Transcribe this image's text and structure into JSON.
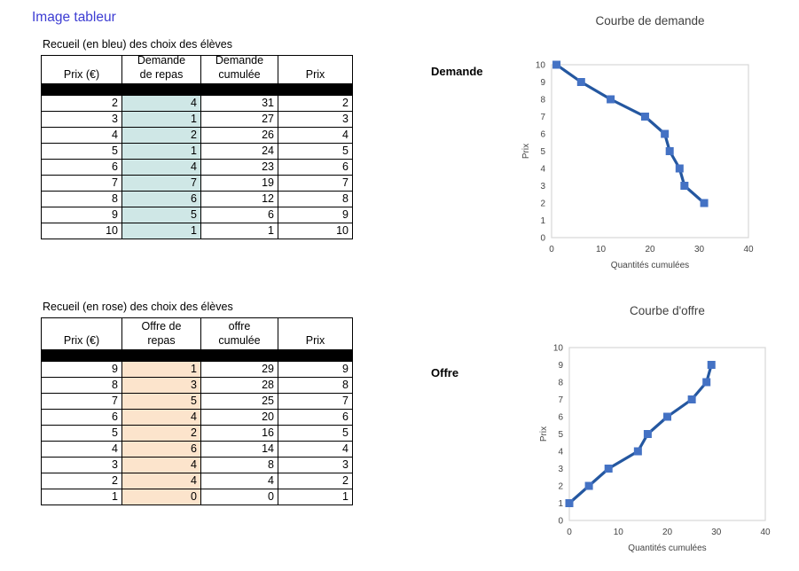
{
  "page_title": "Image tableur",
  "colors": {
    "title_blue": "#3d3dd3",
    "demand_highlight": "#cfe7e6",
    "supply_highlight": "#fce4cc",
    "line_blue": "#2457a0",
    "marker_blue": "#4472c4",
    "separator_row": "#000000"
  },
  "demand_section": {
    "caption": "Recueil (en bleu) des choix des élèves",
    "side_label": "Demande",
    "table": {
      "headers": [
        "Prix (€)",
        "Demande\nde repas",
        "Demande\ncumulée",
        "Prix"
      ],
      "highlight_col": 1,
      "highlight_color": "#cfe7e6",
      "rows": [
        [
          "2",
          "4",
          "31",
          "2"
        ],
        [
          "3",
          "1",
          "27",
          "3"
        ],
        [
          "4",
          "2",
          "26",
          "4"
        ],
        [
          "5",
          "1",
          "24",
          "5"
        ],
        [
          "6",
          "4",
          "23",
          "6"
        ],
        [
          "7",
          "7",
          "19",
          "7"
        ],
        [
          "8",
          "6",
          "12",
          "8"
        ],
        [
          "9",
          "5",
          "6",
          "9"
        ],
        [
          "10",
          "1",
          "1",
          "10"
        ]
      ]
    }
  },
  "supply_section": {
    "caption": "Recueil (en rose) des choix des élèves",
    "side_label": "Offre",
    "table": {
      "headers": [
        "Prix (€)",
        "Offre de\nrepas",
        "offre\ncumulée",
        "Prix"
      ],
      "highlight_col": 1,
      "highlight_color": "#fce4cc",
      "rows": [
        [
          "9",
          "1",
          "29",
          "9"
        ],
        [
          "8",
          "3",
          "28",
          "8"
        ],
        [
          "7",
          "5",
          "25",
          "7"
        ],
        [
          "6",
          "4",
          "20",
          "6"
        ],
        [
          "5",
          "2",
          "16",
          "5"
        ],
        [
          "4",
          "6",
          "14",
          "4"
        ],
        [
          "3",
          "4",
          "8",
          "3"
        ],
        [
          "2",
          "4",
          "4",
          "2"
        ],
        [
          "1",
          "0",
          "0",
          "1"
        ]
      ]
    }
  },
  "chart_data": [
    {
      "type": "line",
      "title": "Courbe de demande",
      "xlabel": "Quantités cumulées",
      "ylabel": "Prix",
      "series": [
        {
          "name": "Demande",
          "x": [
            1,
            6,
            12,
            19,
            23,
            24,
            26,
            27,
            31
          ],
          "y": [
            10,
            9,
            8,
            7,
            6,
            5,
            4,
            3,
            2
          ]
        }
      ],
      "xlim": [
        0,
        40
      ],
      "ylim": [
        0,
        10
      ],
      "xticks": [
        0,
        10,
        20,
        30,
        40
      ],
      "yticks": [
        0,
        1,
        2,
        3,
        4,
        5,
        6,
        7,
        8,
        9,
        10
      ],
      "grid": false,
      "legend": "none",
      "marker": "square",
      "line_color": "#2457a0",
      "marker_color": "#4472c4"
    },
    {
      "type": "line",
      "title": "Courbe d'offre",
      "xlabel": "Quantités cumulées",
      "ylabel": "Prix",
      "series": [
        {
          "name": "Offre",
          "x": [
            0,
            4,
            8,
            14,
            16,
            20,
            25,
            28,
            29
          ],
          "y": [
            1,
            2,
            3,
            4,
            5,
            6,
            7,
            8,
            9
          ]
        }
      ],
      "xlim": [
        0,
        40
      ],
      "ylim": [
        0,
        10
      ],
      "xticks": [
        0,
        10,
        20,
        30,
        40
      ],
      "yticks": [
        0,
        1,
        2,
        3,
        4,
        5,
        6,
        7,
        8,
        9,
        10
      ],
      "grid": false,
      "legend": "none",
      "marker": "square",
      "line_color": "#2457a0",
      "marker_color": "#4472c4"
    }
  ]
}
